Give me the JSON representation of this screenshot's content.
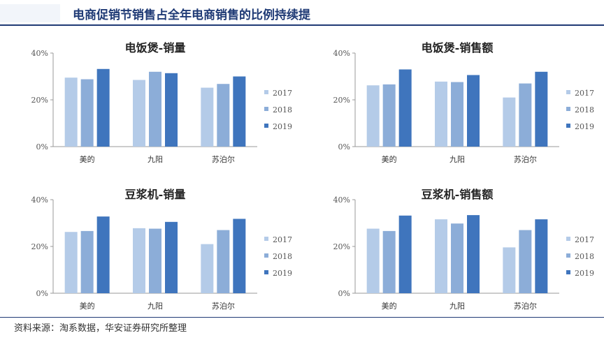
{
  "page_title": "电商促销节销售占全年电商销售的比例持续提",
  "source": "资料来源：淘系数据，华安证券研究所整理",
  "colors": {
    "2017": "#b4cbe8",
    "2018": "#8cadd8",
    "2019": "#3f75bd",
    "title": "#1f3a75"
  },
  "chart_data": [
    {
      "type": "bar",
      "title": "电饭煲-销量",
      "categories": [
        "美的",
        "九阳",
        "苏泊尔"
      ],
      "series": [
        {
          "name": "2017",
          "values": [
            29.5,
            28.5,
            25.2
          ]
        },
        {
          "name": "2018",
          "values": [
            28.8,
            32.0,
            26.8
          ]
        },
        {
          "name": "2019",
          "values": [
            33.2,
            31.4,
            30.0
          ]
        }
      ],
      "ylim": [
        0,
        40
      ],
      "yticks": [
        "0%",
        "20%",
        "40%"
      ],
      "legend_position": "right"
    },
    {
      "type": "bar",
      "title": "电饭煲-销售额",
      "categories": [
        "美的",
        "九阳",
        "苏泊尔"
      ],
      "series": [
        {
          "name": "2017",
          "values": [
            26.2,
            27.8,
            21.0
          ]
        },
        {
          "name": "2018",
          "values": [
            26.6,
            27.6,
            27.0
          ]
        },
        {
          "name": "2019",
          "values": [
            33.0,
            30.6,
            32.0
          ]
        }
      ],
      "ylim": [
        0,
        40
      ],
      "yticks": [
        "0%",
        "20%",
        "40%"
      ],
      "legend_position": "right"
    },
    {
      "type": "bar",
      "title": "豆浆机-销量",
      "categories": [
        "美的",
        "九阳",
        "苏泊尔"
      ],
      "series": [
        {
          "name": "2017",
          "values": [
            26.2,
            27.8,
            21.0
          ]
        },
        {
          "name": "2018",
          "values": [
            26.6,
            27.6,
            27.0
          ]
        },
        {
          "name": "2019",
          "values": [
            32.8,
            30.5,
            31.8
          ]
        }
      ],
      "ylim": [
        0,
        40
      ],
      "yticks": [
        "0%",
        "20%",
        "40%"
      ],
      "legend_position": "right"
    },
    {
      "type": "bar",
      "title": "豆浆机-销售额",
      "categories": [
        "美的",
        "九阳",
        "苏泊尔"
      ],
      "series": [
        {
          "name": "2017",
          "values": [
            27.6,
            31.6,
            19.6
          ]
        },
        {
          "name": "2018",
          "values": [
            26.6,
            29.8,
            27.0
          ]
        },
        {
          "name": "2019",
          "values": [
            33.2,
            33.4,
            31.6
          ]
        }
      ],
      "ylim": [
        0,
        40
      ],
      "yticks": [
        "0%",
        "20%",
        "40%"
      ],
      "legend_position": "right"
    }
  ]
}
